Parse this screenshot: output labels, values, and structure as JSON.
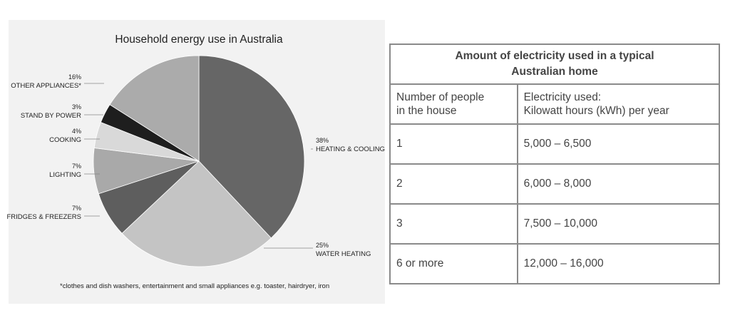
{
  "chart_data": [
    {
      "type": "pie",
      "title": "Household energy use in Australia",
      "slices": [
        {
          "label": "HEATING & COOLING",
          "percent_label": "38%",
          "value": 38,
          "color": "#666666"
        },
        {
          "label": "WATER HEATING",
          "percent_label": "25%",
          "value": 25,
          "color": "#c4c4c4"
        },
        {
          "label": "FRIDGES & FREEZERS",
          "percent_label": "7%",
          "value": 7,
          "color": "#5e5e5e"
        },
        {
          "label": "LIGHTING",
          "percent_label": "7%",
          "value": 7,
          "color": "#a9a9a9"
        },
        {
          "label": "COOKING",
          "percent_label": "4%",
          "value": 4,
          "color": "#d9d9d9"
        },
        {
          "label": "STAND BY POWER",
          "percent_label": "3%",
          "value": 3,
          "color": "#1e1e1e"
        },
        {
          "label": "OTHER APPLIANCES*",
          "percent_label": "16%",
          "value": 16,
          "color": "#ababab"
        }
      ],
      "footnote": "*clothes and dish washers, entertainment and small appliances e.g. toaster, hairdryer, iron"
    },
    {
      "type": "table",
      "title": "Amount of electricity used in a typical Australian home",
      "title_lines": [
        "Amount of electricity used in a typical",
        "Australian home"
      ],
      "columns": [
        {
          "lines": [
            "Number of people",
            "in the house"
          ]
        },
        {
          "lines": [
            "Electricity used:",
            "Kilowatt hours (kWh) per year"
          ]
        }
      ],
      "rows": [
        {
          "people": "1",
          "electricity": "5,000 – 6,500"
        },
        {
          "people": "2",
          "electricity": "6,000 – 8,000"
        },
        {
          "people": "3",
          "electricity": "7,500 – 10,000"
        },
        {
          "people": "6 or more",
          "electricity": "12,000 – 16,000"
        }
      ]
    }
  ]
}
